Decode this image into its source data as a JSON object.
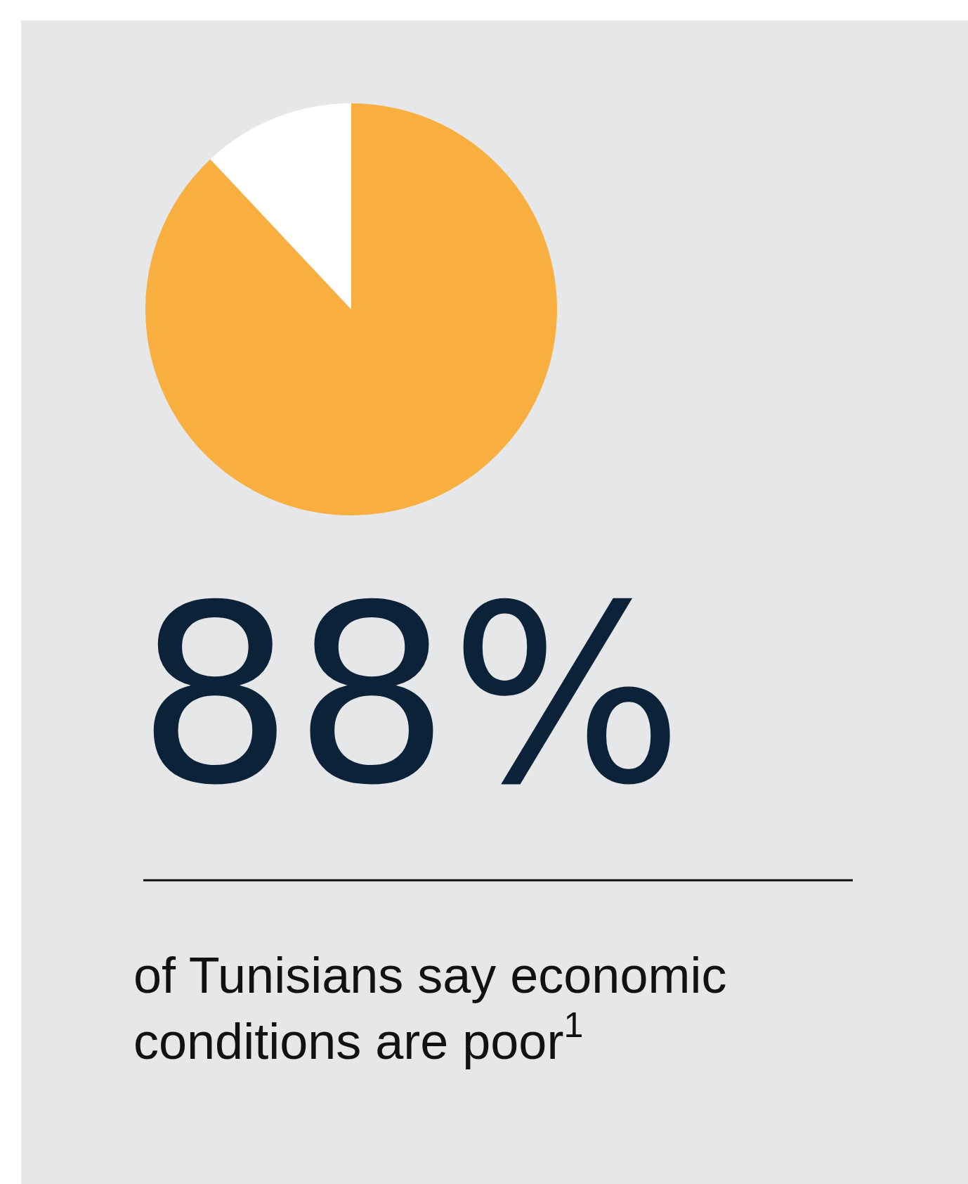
{
  "chart_data": {
    "type": "pie",
    "title": "88%",
    "annotations": [
      "of Tunisians say economic conditions are poor$^{1}$"
    ],
    "categories": [
      null,
      null
    ],
    "values": [
      88,
      12
    ],
    "colors": [
      "#f9ae40",
      "#ffffff"
    ]
  }
}
